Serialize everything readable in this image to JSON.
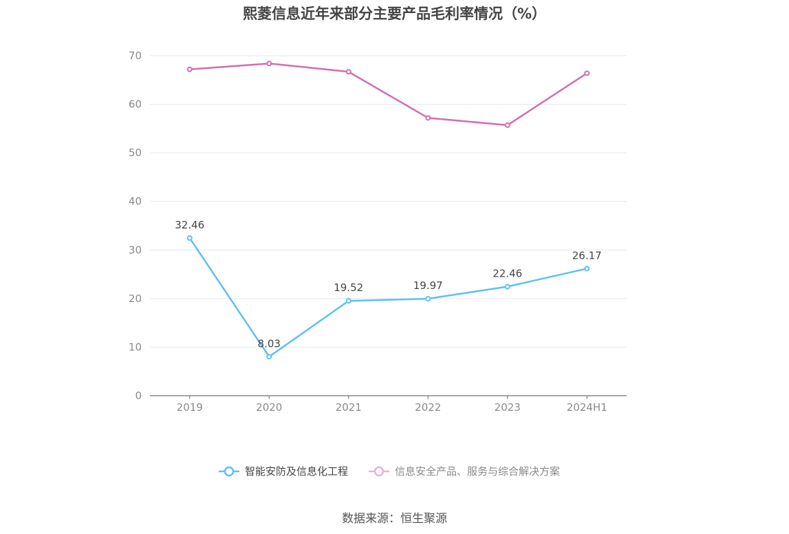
{
  "chart_data": {
    "type": "line",
    "title": "熙菱信息近年来部分主要产品毛利率情况（%）",
    "categories": [
      "2019",
      "2020",
      "2021",
      "2022",
      "2023",
      "2024H1"
    ],
    "ylim": [
      0,
      70
    ],
    "yticks": [
      "0",
      "10",
      "20",
      "30",
      "40",
      "50",
      "60",
      "70"
    ],
    "grid": true,
    "legend_position": "bottom",
    "series": [
      {
        "name": "智能安防及信息化工程",
        "color": "#5bc0f2",
        "values": [
          32.46,
          8.03,
          19.52,
          19.97,
          22.46,
          26.17
        ],
        "labels": [
          "32.46",
          "8.03",
          "19.52",
          "19.97",
          "22.46",
          "26.17"
        ]
      },
      {
        "name": "信息安全产品、服务与综合解决方案",
        "color": "#d36bb0",
        "values": [
          67.2,
          68.4,
          66.7,
          57.2,
          55.7,
          66.4
        ]
      }
    ]
  },
  "source": "数据来源：恒生聚源"
}
